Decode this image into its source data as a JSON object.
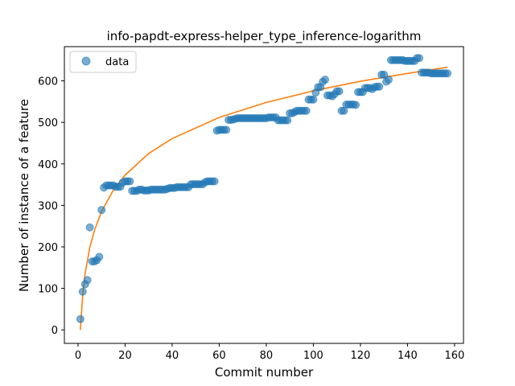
{
  "chart_data": {
    "type": "scatter",
    "title": "info-papdt-express-helper_type_inference-logarithm",
    "xlabel": "Commit number",
    "ylabel": "Number of instance of a feature",
    "xlim": [
      -5.8,
      163.8
    ],
    "ylim": [
      -32.5,
      682.5
    ],
    "xticks": [
      0,
      20,
      40,
      60,
      80,
      100,
      120,
      140,
      160
    ],
    "yticks": [
      0,
      100,
      200,
      300,
      400,
      500,
      600
    ],
    "grid": false,
    "legend": {
      "position": "top-left",
      "entries": [
        "data"
      ]
    },
    "colors": {
      "data": "#1f77b4",
      "fit": "#ff7f0e"
    },
    "series": [
      {
        "name": "data",
        "kind": "scatter",
        "x": [
          1,
          2,
          3,
          4,
          5,
          6,
          7,
          8,
          9,
          10,
          11,
          12,
          13,
          14,
          15,
          16,
          17,
          18,
          19,
          20,
          21,
          22,
          23,
          24,
          25,
          26,
          27,
          28,
          29,
          30,
          31,
          32,
          33,
          34,
          35,
          36,
          37,
          38,
          39,
          40,
          41,
          42,
          43,
          44,
          45,
          46,
          47,
          48,
          49,
          50,
          51,
          52,
          53,
          54,
          55,
          56,
          57,
          58,
          59,
          60,
          61,
          62,
          63,
          64,
          65,
          66,
          67,
          68,
          69,
          70,
          71,
          72,
          73,
          74,
          75,
          76,
          77,
          78,
          79,
          80,
          81,
          82,
          83,
          84,
          85,
          86,
          87,
          88,
          89,
          90,
          91,
          92,
          93,
          94,
          95,
          96,
          97,
          98,
          99,
          100,
          101,
          102,
          103,
          104,
          105,
          106,
          107,
          108,
          109,
          110,
          111,
          112,
          113,
          114,
          115,
          116,
          117,
          118,
          119,
          120,
          121,
          122,
          123,
          124,
          125,
          126,
          127,
          128,
          129,
          130,
          131,
          132,
          133,
          134,
          135,
          136,
          137,
          138,
          139,
          140,
          141,
          142,
          143,
          144,
          145,
          146,
          147,
          148,
          149,
          150,
          151,
          152,
          153,
          154,
          155,
          156,
          157
        ],
        "y": [
          26,
          92,
          110,
          120,
          247,
          165,
          165,
          168,
          176,
          289,
          343,
          348,
          348,
          348,
          348,
          345,
          345,
          345,
          355,
          358,
          358,
          358,
          335,
          335,
          335,
          338,
          338,
          336,
          336,
          336,
          338,
          338,
          338,
          338,
          338,
          338,
          338,
          340,
          342,
          342,
          342,
          344,
          344,
          344,
          344,
          344,
          344,
          351,
          351,
          351,
          351,
          351,
          351,
          356,
          358,
          358,
          358,
          358,
          480,
          482,
          482,
          482,
          482,
          506,
          506,
          507,
          509,
          510,
          510,
          510,
          510,
          510,
          510,
          510,
          510,
          510,
          510,
          510,
          510,
          510,
          512,
          512,
          512,
          512,
          505,
          505,
          505,
          505,
          505,
          522,
          522,
          525,
          528,
          528,
          528,
          528,
          528,
          555,
          555,
          555,
          572,
          585,
          585,
          598,
          603,
          565,
          565,
          563,
          568,
          575,
          575,
          528,
          528,
          543,
          543,
          543,
          543,
          542,
          573,
          573,
          573,
          583,
          583,
          583,
          580,
          585,
          586,
          586,
          615,
          615,
          598,
          603,
          650,
          650,
          650,
          650,
          650,
          650,
          648,
          648,
          648,
          648,
          648,
          655,
          655,
          620,
          620,
          620,
          620,
          618,
          618,
          618,
          618,
          618,
          618,
          618,
          618
        ]
      },
      {
        "name": "",
        "kind": "line",
        "fit": "logarithm",
        "x": [
          1,
          2,
          3,
          5,
          7,
          10,
          15,
          20,
          30,
          40,
          60,
          80,
          100,
          120,
          140,
          157
        ],
        "y": [
          0,
          85,
          135,
          199,
          240,
          285,
          337,
          373,
          425,
          461,
          512,
          548,
          576,
          599,
          618,
          633
        ]
      }
    ]
  }
}
